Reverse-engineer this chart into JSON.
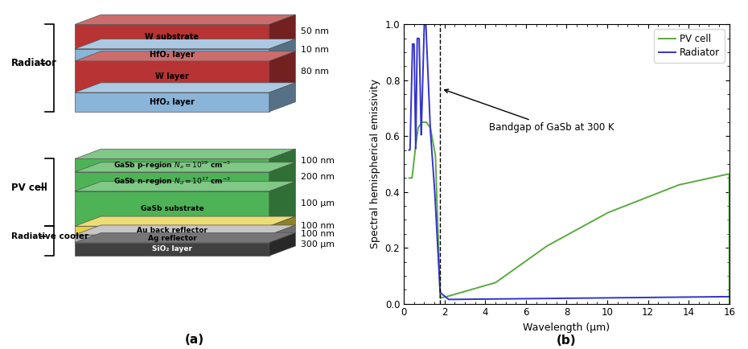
{
  "fig_width": 9.3,
  "fig_height": 4.34,
  "dpi": 100,
  "panel_a_label": "(a)",
  "panel_b_label": "(b)",
  "ylabel": "Spectral hemispherical emissivity",
  "xlabel": "Wavelength (μm)",
  "xlim": [
    0,
    16
  ],
  "ylim": [
    0,
    1.0
  ],
  "xticks": [
    0,
    2,
    4,
    6,
    8,
    10,
    12,
    14,
    16
  ],
  "yticks": [
    0.0,
    0.2,
    0.4,
    0.6,
    0.8,
    1.0
  ],
  "bandgap_wavelength": 1.78,
  "pv_color": "#5aaa40",
  "radiator_color": "#3333cc",
  "legend_pv": "PV cell",
  "legend_radiator": "Radiator",
  "annotation_text": "Bandgap of GaSb at 300 K",
  "r_colors": [
    "#b83333",
    "#8ab4d8",
    "#b83333",
    "#8ab4d8"
  ],
  "r_labels": [
    "W substrate",
    "HfO₂ layer",
    "W layer",
    "HfO₂ layer"
  ],
  "r_thickness_labels": [
    "50 nm",
    "10 nm",
    "80 nm",
    ""
  ],
  "r_thicknesses": [
    0.07,
    0.035,
    0.09,
    0.055
  ],
  "pv_colors": [
    "#4db356",
    "#4db356",
    "#4db356",
    "#e8d040",
    "#b0b0b0",
    "#404040"
  ],
  "pv_labels": [
    "GaSb p-region $N_a = 10^{19}$ cm$^{-3}$",
    "GaSb n-region $N_d = 10^{17}$ cm$^{-3}$",
    "GaSb substrate",
    "Au back reflector",
    "Ag reflector",
    "SiO₂ layer"
  ],
  "pv_thickness_labels": [
    "100 nm",
    "200 nm",
    "100 μm",
    "100 nm",
    "100 nm",
    "300 μm"
  ],
  "pv_label_colors": [
    "black",
    "black",
    "black",
    "black",
    "black",
    "white"
  ],
  "pv_thicknesses": [
    0.038,
    0.055,
    0.1,
    0.025,
    0.022,
    0.038
  ]
}
